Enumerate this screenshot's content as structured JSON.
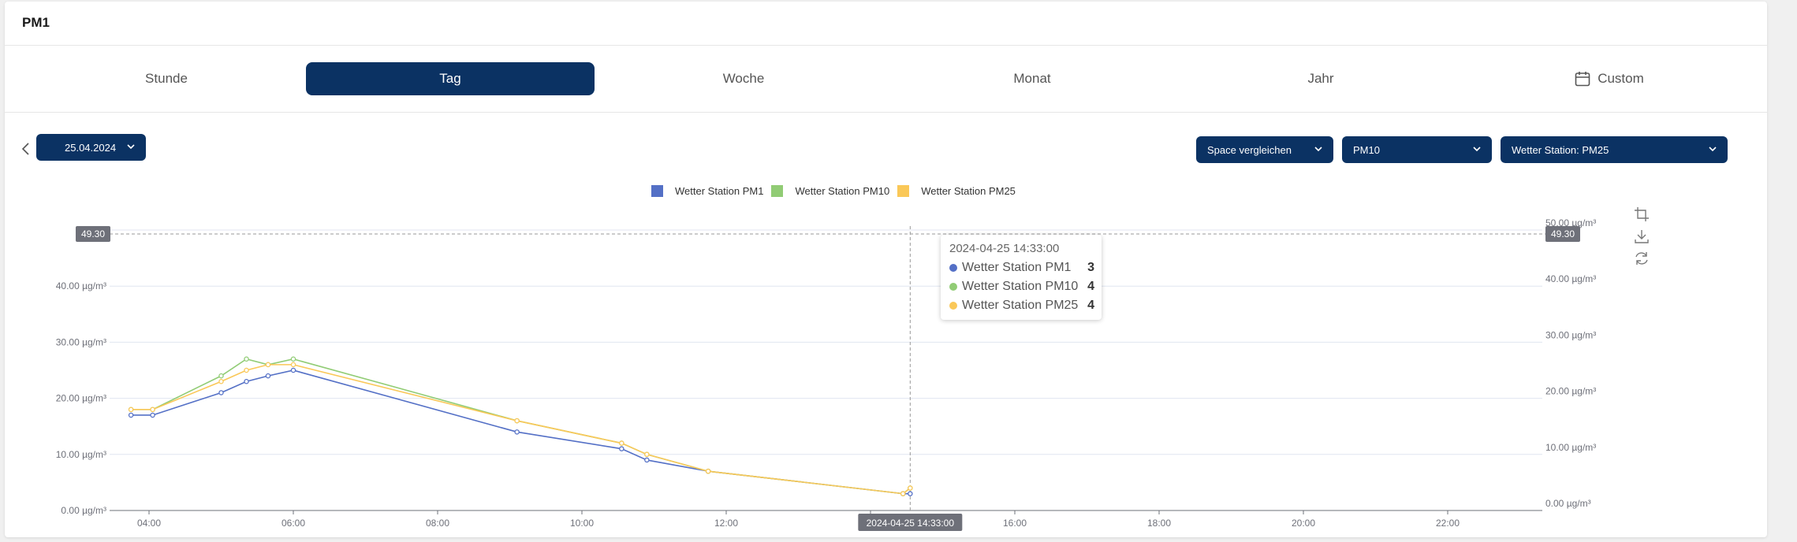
{
  "card": {
    "title": "PM1"
  },
  "tabs": [
    {
      "label": "Stunde",
      "active": false
    },
    {
      "label": "Tag",
      "active": true
    },
    {
      "label": "Woche",
      "active": false
    },
    {
      "label": "Monat",
      "active": false
    },
    {
      "label": "Jahr",
      "active": false
    },
    {
      "label": "Custom",
      "active": false,
      "icon": "calendar-icon"
    }
  ],
  "toolbar": {
    "date": "25.04.2024",
    "compare_button": "Space vergleichen",
    "metric_select": "PM10",
    "station_select": "Wetter Station: PM25"
  },
  "colors": {
    "brand": "#0b3263",
    "pm1": "#5470c6",
    "pm10": "#91cc75",
    "pm25": "#fac858"
  },
  "chart_data": {
    "type": "line",
    "xlabel": "",
    "ylabel": "",
    "y_ticks": [
      "0.00 µg/m³",
      "10.00 µg/m³",
      "20.00 µg/m³",
      "30.00 µg/m³",
      "40.00 µg/m³",
      "50.00 µg/m³"
    ],
    "y_ticks_left": [
      "0.00 µg/m³",
      "10.00 µg/m³",
      "20.00 µg/m³",
      "30.00 µg/m³",
      "40.00 µg/m³",
      "50.00"
    ],
    "ylim": [
      0,
      50
    ],
    "x_ticks": [
      "04:00",
      "06:00",
      "08:00",
      "10:00",
      "12:00",
      "14:00",
      "16:00",
      "18:00",
      "20:00",
      "22:00"
    ],
    "xlim_hours": [
      3.6,
      23.3
    ],
    "reference_line": {
      "value": 49.3,
      "label": "49.30"
    },
    "cursor": {
      "hour": 14.55,
      "label": "2024-04-25 14:33:00"
    },
    "legend_position": "top-center",
    "grid": true,
    "series": [
      {
        "name": "Wetter Station PM1",
        "color": "#5470c6",
        "points": [
          [
            3.75,
            17
          ],
          [
            4.05,
            17
          ],
          [
            5.0,
            21
          ],
          [
            5.35,
            23
          ],
          [
            5.65,
            24
          ],
          [
            6.0,
            25
          ],
          [
            9.1,
            14
          ],
          [
            10.55,
            11
          ],
          [
            10.9,
            9
          ],
          [
            11.75,
            7
          ],
          [
            14.45,
            3
          ],
          [
            14.55,
            3
          ]
        ]
      },
      {
        "name": "Wetter Station PM10",
        "color": "#91cc75",
        "points": [
          [
            3.75,
            18
          ],
          [
            4.05,
            18
          ],
          [
            5.0,
            24
          ],
          [
            5.35,
            27
          ],
          [
            5.65,
            26
          ],
          [
            6.0,
            27
          ],
          [
            9.1,
            16
          ],
          [
            10.55,
            12
          ],
          [
            10.9,
            10
          ],
          [
            11.75,
            7
          ],
          [
            14.45,
            3
          ],
          [
            14.55,
            4
          ]
        ]
      },
      {
        "name": "Wetter Station PM25",
        "color": "#fac858",
        "points": [
          [
            3.75,
            18
          ],
          [
            4.05,
            18
          ],
          [
            5.0,
            23
          ],
          [
            5.35,
            25
          ],
          [
            5.65,
            26
          ],
          [
            6.0,
            26
          ],
          [
            9.1,
            16
          ],
          [
            10.55,
            12
          ],
          [
            10.9,
            10
          ],
          [
            11.75,
            7
          ],
          [
            14.45,
            3
          ],
          [
            14.55,
            4
          ]
        ]
      }
    ]
  },
  "tooltip": {
    "time": "2024-04-25 14:33:00",
    "rows": [
      {
        "name": "Wetter Station PM1",
        "value": "3",
        "color": "#5470c6"
      },
      {
        "name": "Wetter Station PM10",
        "value": "4",
        "color": "#91cc75"
      },
      {
        "name": "Wetter Station PM25",
        "value": "4",
        "color": "#fac858"
      }
    ]
  },
  "tools": [
    "crop-icon",
    "download-icon",
    "refresh-icon"
  ]
}
